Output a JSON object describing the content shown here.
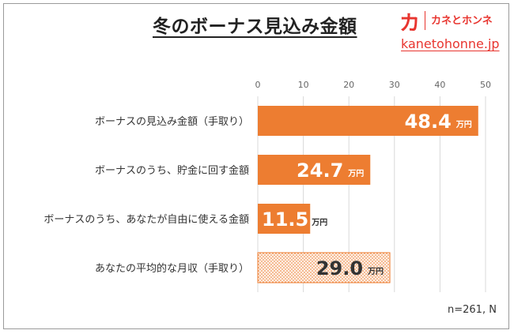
{
  "chart_data": {
    "type": "bar",
    "orientation": "horizontal",
    "title": "冬のボーナス見込み金額",
    "categories": [
      "ボーナスの見込み金額（手取り）",
      "ボーナスのうち、貯金に回す金額",
      "ボーナスのうち、あなたが自由に使える金額",
      "あなたの平均的な月収（手取り）"
    ],
    "values": [
      48.4,
      24.7,
      11.5,
      29.0
    ],
    "value_labels": [
      "48.4",
      "24.7",
      "11.5",
      "29.0"
    ],
    "value_unit": "万円",
    "xlim": [
      0,
      50
    ],
    "xticks": [
      0,
      10,
      20,
      30,
      40,
      50
    ],
    "axis_position": "top",
    "grid": true,
    "bar_color": "#ed7d31",
    "highlight_bar_color": "#fbe5d6",
    "patterned_last_bar": true,
    "note": "n=261, N"
  },
  "logo": {
    "mark": "カ",
    "name": "カネとホンネ",
    "url": "kanetohonne.jp",
    "color": "#e8352f"
  }
}
